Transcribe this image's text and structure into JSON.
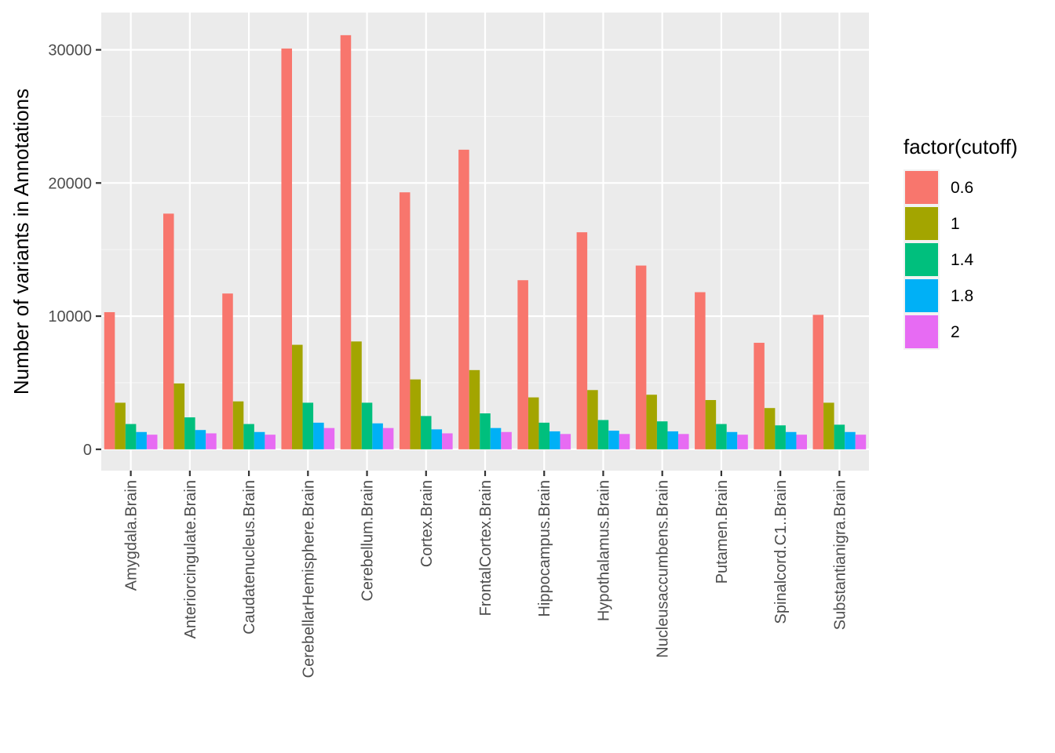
{
  "chart_data": {
    "type": "bar",
    "title": "",
    "xlabel": "",
    "ylabel": "Number of variants in Annotations",
    "ylim": [
      -1600,
      32800
    ],
    "yticks": [
      0,
      10000,
      20000,
      30000
    ],
    "ytick_labels": [
      "0",
      "10000",
      "20000",
      "30000"
    ],
    "grid": true,
    "legend": {
      "title": "factor(cutoff)",
      "position": "right"
    },
    "categories": [
      "Amygdala.Brain",
      "Anteriorcingulate.Brain",
      "Caudatenucleus.Brain",
      "CerebellarHemisphere.Brain",
      "Cerebellum.Brain",
      "Cortex.Brain",
      "FrontalCortex.Brain",
      "Hippocampus.Brain",
      "Hypothalamus.Brain",
      "Nucleusaccumbens.Brain",
      "Putamen.Brain",
      "Spinalcord.C1..Brain",
      "Substantianigra.Brain"
    ],
    "series": [
      {
        "name": "0.6",
        "color": "#F8766D",
        "values": [
          10300,
          17700,
          11700,
          30100,
          31100,
          19300,
          22500,
          12700,
          16300,
          13800,
          11800,
          8000,
          10100
        ]
      },
      {
        "name": "1",
        "color": "#A3A500",
        "values": [
          3500,
          4950,
          3600,
          7850,
          8100,
          5250,
          5950,
          3900,
          4450,
          4100,
          3700,
          3100,
          3500
        ]
      },
      {
        "name": "1.4",
        "color": "#00BF7D",
        "values": [
          1900,
          2400,
          1900,
          3500,
          3500,
          2500,
          2700,
          2000,
          2200,
          2100,
          1900,
          1800,
          1850
        ]
      },
      {
        "name": "1.8",
        "color": "#00B0F6",
        "values": [
          1300,
          1450,
          1300,
          2000,
          1950,
          1500,
          1600,
          1350,
          1400,
          1350,
          1300,
          1300,
          1300
        ]
      },
      {
        "name": "2",
        "color": "#E76BF3",
        "values": [
          1100,
          1200,
          1100,
          1600,
          1600,
          1200,
          1300,
          1150,
          1150,
          1150,
          1100,
          1100,
          1100
        ]
      }
    ]
  }
}
